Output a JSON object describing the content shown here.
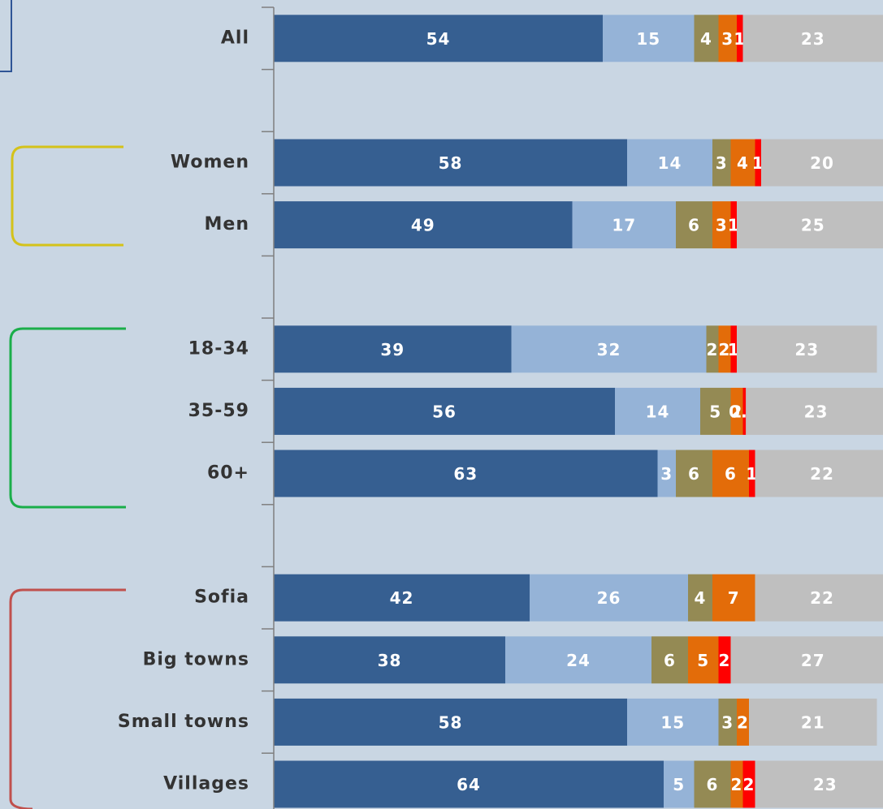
{
  "chart_data": {
    "type": "stacked-bar-horizontal",
    "categories": [
      "All",
      null,
      "Women",
      "Men",
      null,
      "18-34",
      "35-59",
      "60+",
      null,
      "Sofia",
      "Big towns",
      "Small towns",
      "Villages"
    ],
    "xlim": [
      0,
      100
    ],
    "series": [
      {
        "color": "#365f91",
        "values": [
          54,
          null,
          58,
          49,
          null,
          39,
          56,
          63,
          null,
          42,
          38,
          58,
          64
        ]
      },
      {
        "color": "#95b3d7",
        "values": [
          15,
          null,
          14,
          17,
          null,
          32,
          14,
          3,
          null,
          26,
          24,
          15,
          5
        ]
      },
      {
        "color": "#948a54",
        "values": [
          4,
          null,
          3,
          6,
          null,
          2,
          5,
          6,
          null,
          4,
          6,
          3,
          6
        ]
      },
      {
        "color": "#e36c09",
        "values": [
          3,
          null,
          4,
          3,
          null,
          2,
          2,
          6,
          null,
          7,
          5,
          2,
          2
        ]
      },
      {
        "color": "#ff0000",
        "values": [
          1,
          null,
          1,
          1,
          null,
          1,
          0.5,
          1,
          null,
          null,
          2,
          null,
          2
        ]
      },
      {
        "color": "#bfbfbf",
        "values": [
          23,
          null,
          20,
          25,
          null,
          23,
          23,
          22,
          null,
          22,
          27,
          21,
          23
        ]
      }
    ]
  }
}
